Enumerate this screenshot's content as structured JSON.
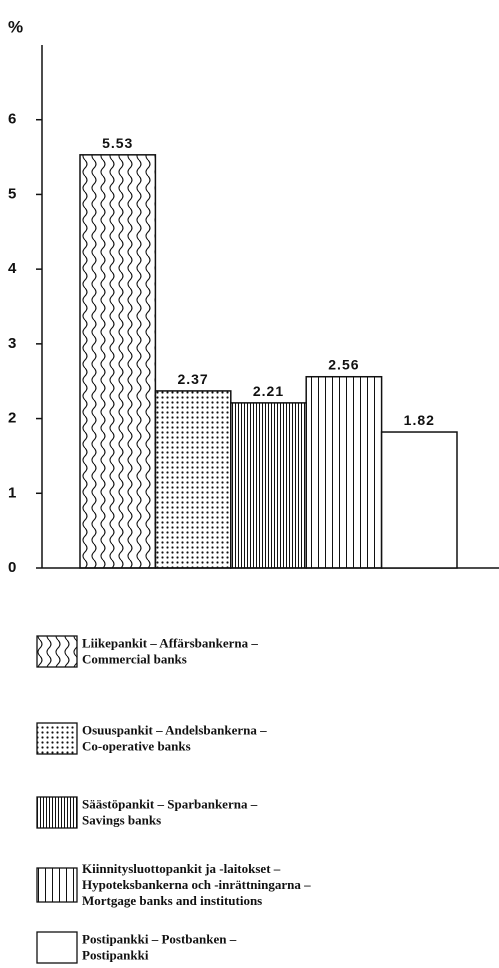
{
  "chart_data": {
    "type": "bar",
    "y_label": "%",
    "ylim": [
      0,
      7
    ],
    "yticks": [
      0,
      1,
      2,
      3,
      4,
      5,
      6
    ],
    "color": "#111111",
    "series": [
      {
        "name": [
          "Liikepankit – Affärsbankerna –",
          "Commercial banks"
        ],
        "pattern": "wavy",
        "values": [
          5.53
        ]
      },
      {
        "name": [
          "Osuuspankit – Andelsbankerna –",
          "Co-operative banks"
        ],
        "pattern": "dots",
        "values": [
          2.37
        ]
      },
      {
        "name": [
          "Säästöpankit – Sparbankerna –",
          "Savings banks"
        ],
        "pattern": "dense-vertical",
        "values": [
          2.21
        ]
      },
      {
        "name": [
          "Kiinnitysluottopankit ja -laitokset –",
          "Hypoteksbankerna och -inrättningarna –",
          "Mortgage banks and institutions"
        ],
        "pattern": "vertical",
        "values": [
          2.56
        ]
      },
      {
        "name": [
          "Postipankki – Postbanken –",
          "Postipankki"
        ],
        "pattern": "none",
        "values": [
          1.82
        ]
      }
    ]
  }
}
